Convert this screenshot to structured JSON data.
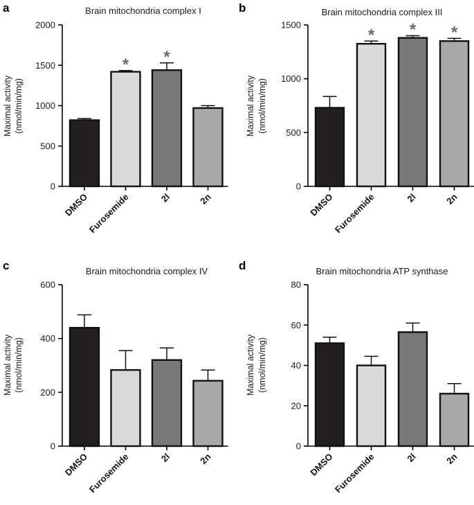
{
  "chart_data": [
    {
      "type": "bar",
      "panel": "a",
      "title": "Brain mitochondria complex I",
      "ylabel": "Maximal activity",
      "ylabel2": "(nmol/min/mg)",
      "categories": [
        "DMSO",
        "Furosemide",
        "2l",
        "2n"
      ],
      "values": [
        820,
        1420,
        1440,
        970
      ],
      "errors": [
        20,
        15,
        90,
        30
      ],
      "significant": [
        "",
        "*",
        "*",
        ""
      ],
      "colors": [
        "#231f20",
        "#d9dadc",
        "#77787a",
        "#a8a9ab"
      ],
      "ylim": [
        0,
        2000
      ],
      "yticks": [
        "0",
        "500",
        "1000",
        "1500",
        "2000"
      ],
      "ytick_values": [
        0,
        500,
        1000,
        1500,
        2000
      ]
    },
    {
      "type": "bar",
      "panel": "b",
      "title": "Brain mitochondria complex III",
      "ylabel": "Maximal activity",
      "ylabel2": "(nmol/min/mg)",
      "categories": [
        "DMSO",
        "Furosemide",
        "2l",
        "2n"
      ],
      "values": [
        730,
        1325,
        1380,
        1350
      ],
      "errors": [
        105,
        25,
        20,
        25
      ],
      "significant": [
        "",
        "*",
        "*",
        "*"
      ],
      "colors": [
        "#231f20",
        "#d9dadc",
        "#77787a",
        "#a8a9ab"
      ],
      "ylim": [
        0,
        1500
      ],
      "yticks": [
        "0",
        "500",
        "1000",
        "1500"
      ],
      "ytick_values": [
        0,
        500,
        1000,
        1500
      ]
    },
    {
      "type": "bar",
      "panel": "c",
      "title": "Brain mitochondria complex IV",
      "ylabel": "Maximal activity",
      "ylabel2": "(nmol/min/mg)",
      "categories": [
        "DMSO",
        "Furosemide",
        "2l",
        "2n"
      ],
      "values": [
        440,
        283,
        320,
        243
      ],
      "errors": [
        48,
        72,
        45,
        40
      ],
      "significant": [
        "",
        "",
        "",
        ""
      ],
      "colors": [
        "#231f20",
        "#d9dadc",
        "#77787a",
        "#a8a9ab"
      ],
      "ylim": [
        0,
        600
      ],
      "yticks": [
        "0",
        "200",
        "400",
        "600"
      ],
      "ytick_values": [
        0,
        200,
        400,
        600
      ]
    },
    {
      "type": "bar",
      "panel": "d",
      "title": "Brain mitochondria ATP synthase",
      "ylabel": "Maximal activity",
      "ylabel2": "(nmol/min/mg)",
      "categories": [
        "DMSO",
        "Furosemide",
        "2l",
        "2n"
      ],
      "values": [
        51,
        40,
        56.5,
        26
      ],
      "errors": [
        3,
        4.5,
        4.5,
        5
      ],
      "significant": [
        "",
        "",
        "",
        ""
      ],
      "colors": [
        "#231f20",
        "#d9dadc",
        "#77787a",
        "#a8a9ab"
      ],
      "ylim": [
        0,
        80
      ],
      "yticks": [
        "0",
        "20",
        "40",
        "60",
        "80"
      ],
      "ytick_values": [
        0,
        20,
        40,
        60,
        80
      ]
    }
  ]
}
